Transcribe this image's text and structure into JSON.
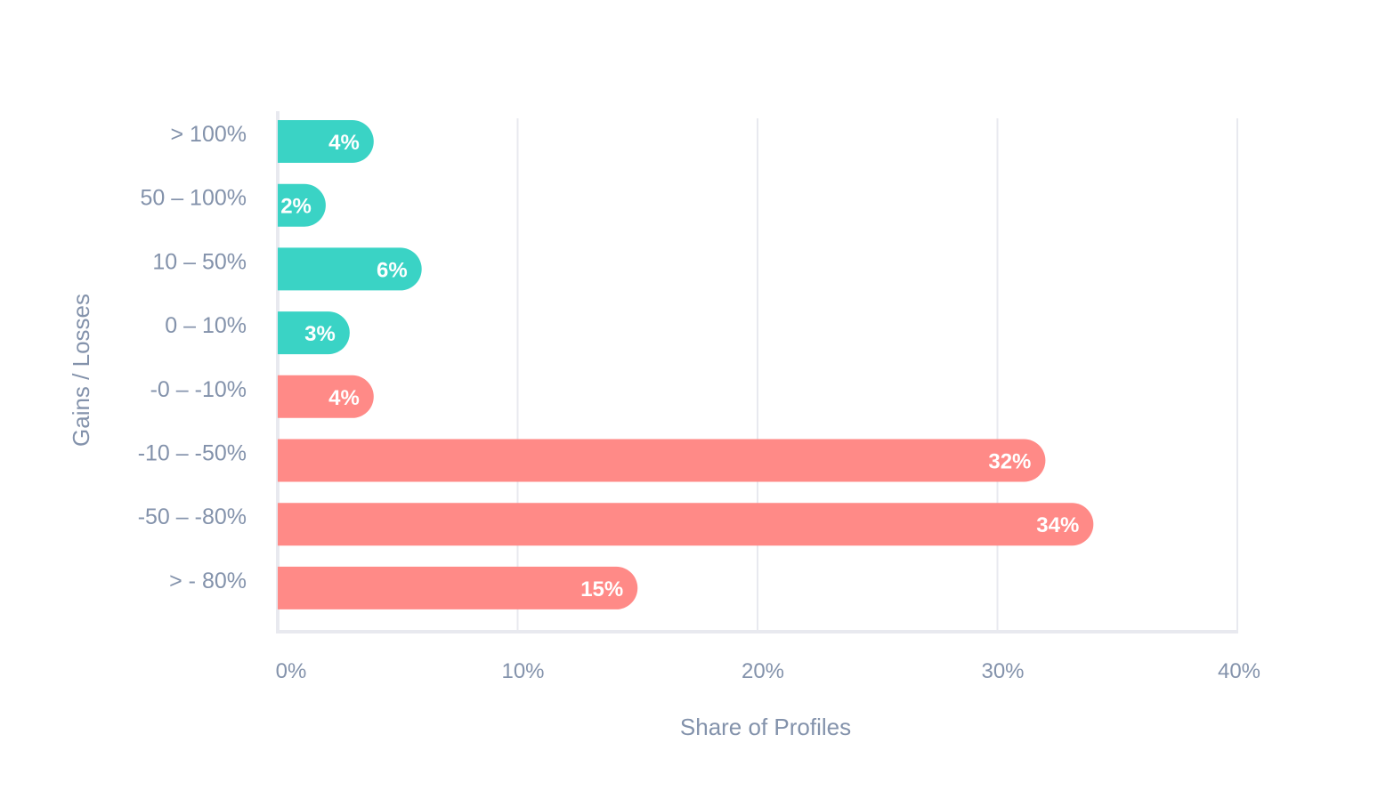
{
  "chart_data": {
    "type": "bar",
    "orientation": "horizontal",
    "categories": [
      "> 100%",
      "50 – 100%",
      "10 – 50%",
      "0 – 10%",
      "-0 – -10%",
      "-10 – -50%",
      "-50 – -80%",
      "> - 80%"
    ],
    "values": [
      4,
      2,
      6,
      3,
      4,
      32,
      34,
      15
    ],
    "data_labels": [
      "4%",
      "2%",
      "6%",
      "3%",
      "4%",
      "32%",
      "34%",
      "15%"
    ],
    "bar_colors": [
      "#3ad3c5",
      "#3ad3c5",
      "#3ad3c5",
      "#3ad3c5",
      "#ff8a87",
      "#ff8a87",
      "#ff8a87",
      "#ff8a87"
    ],
    "xlabel": "Share of Profiles",
    "ylabel": "Gains / Losses",
    "xlim": [
      0,
      40
    ],
    "x_ticks": [
      0,
      10,
      20,
      30,
      40
    ],
    "x_tick_labels": [
      "0%",
      "10%",
      "20%",
      "30%",
      "40%"
    ],
    "grid": "vertical",
    "text_color": "#8392ab",
    "grid_color": "#e8e9ef"
  }
}
